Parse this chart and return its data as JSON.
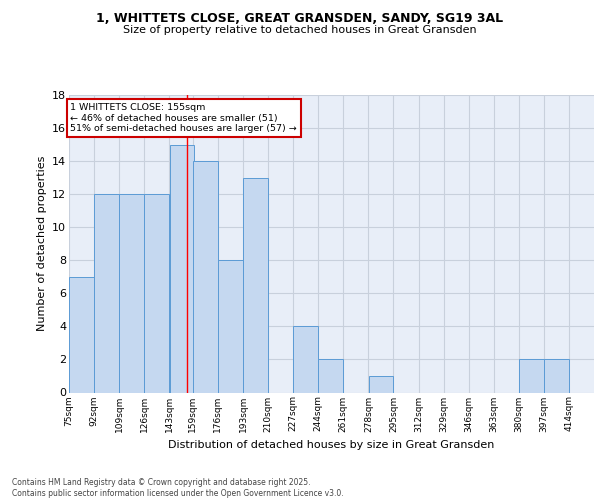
{
  "title1": "1, WHITTETS CLOSE, GREAT GRANSDEN, SANDY, SG19 3AL",
  "title2": "Size of property relative to detached houses in Great Gransden",
  "xlabel": "Distribution of detached houses by size in Great Gransden",
  "ylabel": "Number of detached properties",
  "bar_left_edges": [
    75,
    92,
    109,
    126,
    143,
    159,
    176,
    193,
    210,
    227,
    244,
    261,
    278,
    295,
    312,
    329,
    346,
    363,
    380,
    397
  ],
  "bar_heights": [
    7,
    12,
    12,
    12,
    15,
    14,
    8,
    13,
    0,
    4,
    2,
    0,
    1,
    0,
    0,
    0,
    0,
    0,
    2,
    2
  ],
  "bin_size": 17,
  "tick_labels": [
    "75sqm",
    "92sqm",
    "109sqm",
    "126sqm",
    "143sqm",
    "159sqm",
    "176sqm",
    "193sqm",
    "210sqm",
    "227sqm",
    "244sqm",
    "261sqm",
    "278sqm",
    "295sqm",
    "312sqm",
    "329sqm",
    "346sqm",
    "363sqm",
    "380sqm",
    "397sqm",
    "414sqm"
  ],
  "tick_positions": [
    75,
    92,
    109,
    126,
    143,
    159,
    176,
    193,
    210,
    227,
    244,
    261,
    278,
    295,
    312,
    329,
    346,
    363,
    380,
    397,
    414
  ],
  "bar_color": "#c5d8f0",
  "bar_edge_color": "#5b9bd5",
  "annotation_line1": "1 WHITTETS CLOSE: 155sqm",
  "annotation_line2": "← 46% of detached houses are smaller (51)",
  "annotation_line3": "51% of semi-detached houses are larger (57) →",
  "annotation_box_color": "#ffffff",
  "annotation_box_edge": "#cc0000",
  "red_line_x": 155,
  "ylim": [
    0,
    18
  ],
  "yticks": [
    0,
    2,
    4,
    6,
    8,
    10,
    12,
    14,
    16,
    18
  ],
  "xlim": [
    75,
    431
  ],
  "grid_color": "#c8d0dc",
  "background_color": "#e8eef8",
  "footer1": "Contains HM Land Registry data © Crown copyright and database right 2025.",
  "footer2": "Contains public sector information licensed under the Open Government Licence v3.0."
}
